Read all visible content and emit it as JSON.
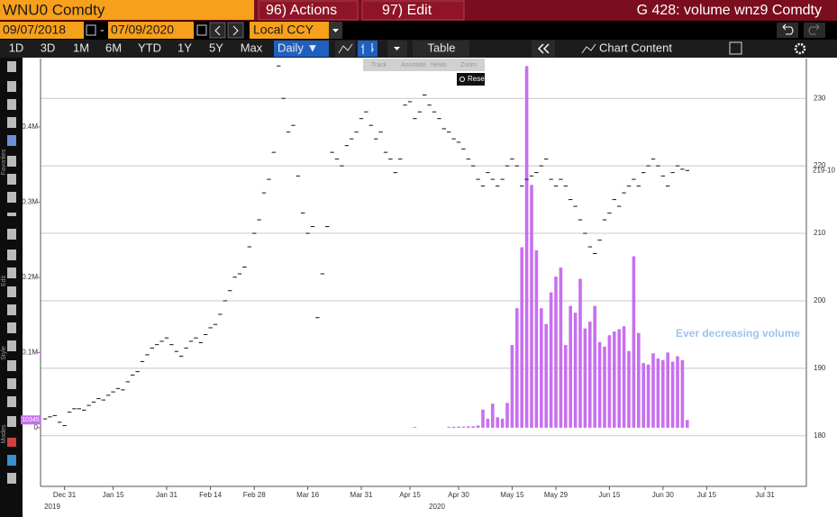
{
  "header": {
    "ticker": "WNU0 Comdty",
    "actions": "96) Actions",
    "edit": "97) Edit",
    "title": "G 428: volume wnz9 Comdty"
  },
  "controls": {
    "start_date": "09/07/2018",
    "separator": "-",
    "end_date": "07/09/2020",
    "currency": "Local CCY"
  },
  "toolbar": {
    "periods": [
      "1D",
      "3D",
      "1M",
      "6M",
      "YTD",
      "1Y",
      "5Y",
      "Max"
    ],
    "frequency": "Daily ▼",
    "table": "Table",
    "chart_content": "Chart Content"
  },
  "chart_tools": [
    "Track",
    "Annotate",
    "News",
    "Zoom"
  ],
  "reset": "Reset",
  "side_labels": [
    "Favorites",
    "Edit",
    "Style",
    "Modes"
  ],
  "chart_data": {
    "type": "combo",
    "categories": [
      null,
      null,
      null,
      null,
      "Dec 31",
      null,
      null,
      null,
      null,
      null,
      null,
      null,
      null,
      null,
      "Jan 15",
      null,
      null,
      null,
      null,
      null,
      null,
      null,
      null,
      null,
      null,
      "Jan 31",
      null,
      null,
      null,
      null,
      null,
      null,
      null,
      null,
      "Feb 14",
      null,
      null,
      null,
      null,
      null,
      null,
      null,
      null,
      "Feb 28",
      null,
      null,
      null,
      null,
      null,
      null,
      null,
      null,
      null,
      null,
      "Mar 16",
      null,
      null,
      null,
      null,
      null,
      null,
      null,
      null,
      null,
      null,
      "Mar 31",
      null,
      null,
      null,
      null,
      null,
      null,
      null,
      null,
      null,
      "Apr 15",
      null,
      null,
      null,
      null,
      null,
      null,
      null,
      null,
      null,
      "Apr 30",
      null,
      null,
      null,
      null,
      null,
      null,
      null,
      null,
      null,
      null,
      "May 15",
      null,
      null,
      null,
      null,
      null,
      null,
      null,
      null,
      "May 29",
      null,
      null,
      null,
      null,
      null,
      null,
      null,
      null,
      null,
      null,
      "Jun 15",
      null,
      null,
      null,
      null,
      null,
      null,
      null,
      null,
      null,
      null,
      "Jun 30",
      null,
      null,
      null,
      null,
      null,
      null,
      null,
      null,
      "Jul 15",
      null,
      null,
      null,
      null,
      null,
      null,
      null,
      null,
      null,
      null,
      null,
      "Jul 31",
      null
    ],
    "x_year_labels": [
      "2019",
      "2020"
    ],
    "series": [
      {
        "type": "bar",
        "color": "#c86ff0",
        "values": [
          null,
          null,
          null,
          null,
          null,
          null,
          null,
          null,
          null,
          null,
          null,
          null,
          null,
          null,
          null,
          null,
          null,
          null,
          null,
          null,
          null,
          null,
          null,
          null,
          null,
          null,
          null,
          null,
          null,
          null,
          null,
          null,
          null,
          null,
          null,
          null,
          null,
          null,
          null,
          null,
          null,
          null,
          null,
          null,
          null,
          null,
          null,
          null,
          null,
          null,
          null,
          null,
          null,
          null,
          null,
          null,
          null,
          null,
          null,
          null,
          null,
          null,
          null,
          null,
          null,
          null,
          null,
          null,
          null,
          null,
          null,
          null,
          null,
          null,
          null,
          null,
          1000,
          null,
          null,
          null,
          null,
          null,
          null,
          1200,
          1300,
          1500,
          1500,
          1800,
          2000,
          3000,
          24000,
          12000,
          32000,
          14000,
          12000,
          33000,
          110000,
          159000,
          240000,
          481000,
          323000,
          236000,
          159000,
          138000,
          180000,
          201000,
          213000,
          110000,
          162000,
          153000,
          198000,
          132000,
          141000,
          162000,
          114000,
          108000,
          123000,
          128000,
          131000,
          135000,
          102000,
          228000,
          126000,
          86000,
          84000,
          99000,
          92000,
          90000,
          100000,
          88000,
          95000,
          90000,
          10345,
          null,
          null,
          null,
          null,
          null,
          null,
          null,
          null,
          null,
          null,
          null,
          null,
          null,
          null,
          null,
          null,
          null
        ]
      },
      {
        "type": "price",
        "axis": "y2",
        "color": "#111111",
        "values": [
          182.5,
          182.8,
          183,
          182,
          181.5,
          183.5,
          184,
          184,
          183.8,
          184.5,
          185,
          185.5,
          185.3,
          186,
          186.5,
          187,
          186.8,
          188,
          189,
          189.5,
          191,
          192,
          193,
          193.5,
          194,
          194.5,
          193.5,
          192.5,
          191.8,
          193,
          194,
          194.5,
          193.8,
          195,
          196,
          196.5,
          198,
          200,
          201.5,
          203.5,
          204,
          205,
          208,
          210,
          212,
          216,
          218,
          222,
          234.8,
          230,
          225,
          226,
          218.5,
          213,
          210,
          211,
          197.5,
          204,
          211,
          222,
          221,
          220,
          223,
          224,
          225,
          227,
          228,
          226,
          224,
          225,
          222,
          221,
          219,
          221,
          229,
          229.5,
          227,
          228,
          230.5,
          229,
          228,
          227,
          225.5,
          225,
          224,
          223.5,
          222.5,
          221,
          220,
          218,
          217,
          219,
          218,
          217,
          218,
          220,
          221,
          220,
          217,
          218,
          218.5,
          219,
          220,
          221,
          218,
          217,
          218,
          217,
          215,
          214,
          212,
          210,
          208,
          207,
          209,
          212,
          213,
          215,
          214,
          216,
          217,
          218,
          217,
          219,
          220,
          221,
          220,
          218.5,
          217,
          219,
          220,
          219.5,
          219.3125,
          null,
          null,
          null,
          null,
          null,
          null,
          null,
          null,
          null,
          null,
          null,
          null,
          null,
          null,
          null,
          null,
          null
        ]
      }
    ],
    "ylim": [
      -78000,
      491000
    ],
    "yticks": [
      0,
      {
        "value": 100000,
        "label": "0.1M"
      },
      {
        "value": 200000,
        "label": "0.2M"
      },
      {
        "value": 300000,
        "label": "0.3M"
      },
      {
        "value": 400000,
        "label": "0.4M"
      }
    ],
    "y2lim": [
      172.5,
      235.9
    ],
    "y2ticks": [
      180,
      190,
      200,
      210,
      220,
      230
    ],
    "grid": "y2",
    "last_price_tag": "219-10",
    "annotation": "Ever decreasing volume",
    "annotation_color": "#9cc3f0"
  }
}
